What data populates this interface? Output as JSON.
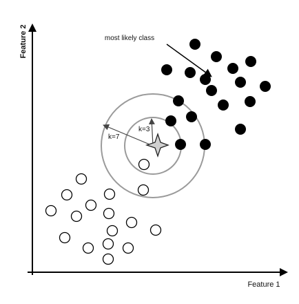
{
  "axes": {
    "x_label": "Feature 1",
    "y_label": "Feature 2"
  },
  "annotation": {
    "label": "most likely class"
  },
  "radii": {
    "inner_label": "k=3",
    "outer_label": "k=7"
  },
  "query_point": {
    "icon": "four-point-star-icon"
  },
  "classes": {
    "filled": {
      "name": "",
      "color": "#000000"
    },
    "hollow": {
      "name": "",
      "color": "#ffffff",
      "stroke": "#000000"
    }
  }
}
